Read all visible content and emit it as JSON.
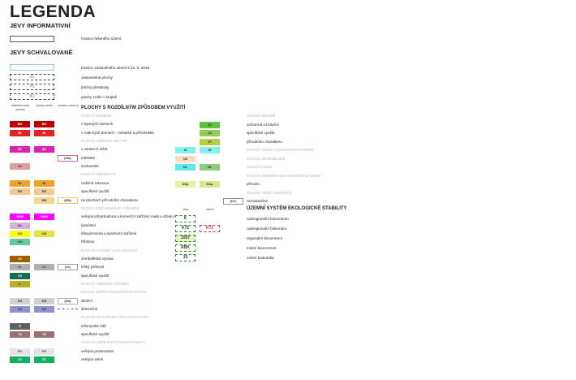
{
  "title": "LEGENDA",
  "info": {
    "heading": "JEVY INFORMATIVNÍ",
    "items": [
      {
        "label": "hranice řešeného území"
      }
    ]
  },
  "approved": {
    "heading": "JEVY SCHVALOVANÉ",
    "items": [
      {
        "code": "",
        "label": "hranice zastavěného území k 31. 5. 2016",
        "color": "#9dc3e6"
      },
      {
        "code": "Z1",
        "label": "zastavitelné plochy",
        "color": "#d040c0"
      },
      {
        "code": "P1",
        "label": "plochy přestavby",
        "color": "#4a90c0"
      },
      {
        "code": "K1",
        "label": "plochy změn v krajině",
        "color": "#30a030"
      }
    ]
  },
  "columns": {
    "stab": "stabilizované plochy",
    "zmena": "plochy změn",
    "rezerva": "územní rezervy"
  },
  "areas_heading": "PLOCHY S ROZDÍLNÝM ZPŮSOBEM VYUŽITÍ",
  "left_rows": [
    {
      "cat": "PLOCHY BYDLENÍ"
    },
    {
      "label": "v bytových domech",
      "stab": {
        "code": "BH",
        "color": "#c00000"
      },
      "zmena": {
        "code": "BH",
        "color": "#c00000"
      }
    },
    {
      "label": "v rodinných domech - městské a příměstské",
      "stab": {
        "code": "BI",
        "color": "#e82020"
      },
      "zmena": {
        "code": "BI",
        "color": "#e82020"
      }
    },
    {
      "cat": "PLOCHY SMÍŠENÉ OBYTNÉ"
    },
    {
      "label": "v centrech měst",
      "stab": {
        "code": "SC",
        "color": "#e020b0"
      },
      "zmena": {
        "code": "SC",
        "color": "#e020b0"
      }
    },
    {
      "label": "městské",
      "rezerva": {
        "code": "(SM)",
        "color": "#d060c0"
      }
    },
    {
      "label": "venkovské",
      "stab": {
        "code": "SV",
        "color": "#e0a0a0"
      }
    },
    {
      "cat": "PLOCHY REKREACE"
    },
    {
      "label": "rodinná rekreace",
      "stab": {
        "code": "RI",
        "color": "#f0a030"
      },
      "zmena": {
        "code": "RI",
        "color": "#f0a030"
      }
    },
    {
      "label": "specifické využití",
      "stab": {
        "code": "RX",
        "color": "#f5c890"
      },
      "zmena": {
        "code": "RX",
        "color": "#f5c890"
      }
    },
    {
      "label": "na plochách přírodního charakteru",
      "zmena": {
        "code": "RN",
        "color": "#f0d890"
      },
      "rezerva": {
        "code": "(RN)",
        "color": "#e8c860"
      }
    },
    {
      "cat": "PLOCHY OBČANSKÉHO VYBAVENÍ"
    },
    {
      "label": "veřejná infrastruktura a komerční zařízení malá a střední",
      "stab": {
        "code": "OVW",
        "color": "#ff00ff"
      },
      "zmena": {
        "code": "OVW",
        "color": "#ff00ff"
      }
    },
    {
      "label": "lázeňství",
      "stab": {
        "code": "OL",
        "color": "#d8b0e0"
      }
    },
    {
      "label": "tělovýchovná a sportovní zařízení",
      "stab": {
        "code": "OS",
        "color": "#ffff00"
      },
      "zmena": {
        "code": "OS",
        "color": "#e8e040"
      }
    },
    {
      "label": "hřbitovy",
      "stab": {
        "code": "OH",
        "color": "#60c8a0"
      }
    },
    {
      "cat": "PLOCHY VÝROBY A SKLADOVÁNÍ"
    },
    {
      "label": "zemědělská výroba",
      "stab": {
        "code": "VZ",
        "color": "#a06000"
      }
    },
    {
      "label": "lehký průmysl",
      "stab": {
        "code": "VL",
        "color": "#b0b0b0"
      },
      "zmena": {
        "code": "VL",
        "color": "#b0b0b0"
      },
      "rezerva": {
        "code": "(VL)",
        "color": "#a0a0a0"
      }
    },
    {
      "label": "specifické využití",
      "stab": {
        "code": "VX",
        "color": "#107050"
      }
    },
    {
      "cat": "PLOCHY SMÍŠENÉ VÝROBNÍ",
      "stab": {
        "code": "K",
        "color": "#b8b020"
      }
    },
    {
      "cat": "PLOCHY DOPRAVNÍ INFRASTRUKTURY"
    },
    {
      "label": "silniční",
      "stab": {
        "code": "DS",
        "color": "#d0d0d0"
      },
      "zmena": {
        "code": "DS",
        "color": "#d0d0d0"
      },
      "rezerva": {
        "code": "(DS)",
        "color": "#b0b0b0"
      }
    },
    {
      "label": "železniční",
      "stab": {
        "code": "DZ",
        "color": "#9090d0"
      },
      "zmena": {
        "code": "DZ",
        "color": "#9090d0"
      },
      "rezerva": {
        "code": "(DZ)",
        "color": "#606060",
        "line": true
      }
    },
    {
      "cat": "PLOCHY TECHNICKÉ INFRASTRUKTURY"
    },
    {
      "label": "inženýrské sítě",
      "stab": {
        "code": "TI",
        "color": "#606060"
      }
    },
    {
      "label": "specifické využití",
      "stab": {
        "code": "TX",
        "color": "#a07070"
      },
      "zmena": {
        "code": "TX",
        "color": "#a07070"
      }
    },
    {
      "cat": "PLOCHY VEŘEJNÝCH PROSTRANSTVÍ"
    },
    {
      "label": "veřejná prostranství",
      "stab": {
        "code": "PV",
        "color": "#e4e4e4"
      },
      "zmena": {
        "code": "PV",
        "color": "#e4e4e4"
      }
    },
    {
      "label": "veřejná zeleň",
      "stab": {
        "code": "ZV",
        "color": "#10b060"
      },
      "zmena": {
        "code": "ZV",
        "color": "#10b060"
      }
    }
  ],
  "right_rows": [
    {
      "cat": "PLOCHY ZELENĚ"
    },
    {
      "label": "ochranná a izolační",
      "zmena": {
        "code": "ZO",
        "color": "#60c040"
      }
    },
    {
      "label": "specifické využití",
      "zmena": {
        "code": "ZX",
        "color": "#90d050"
      }
    },
    {
      "label": "přírodního charakteru",
      "zmena": {
        "code": "ZP",
        "color": "#b8d040"
      }
    },
    {
      "cat": "PLOCHY VODNÍ A VODOHOSPODÁŘSKÉ",
      "stab": {
        "code": "W",
        "color": "#80f0f0"
      },
      "zmena": {
        "code": "W",
        "color": "#80f0f0"
      }
    },
    {
      "cat": "PLOCHY ZEMĚDĚLSKÉ",
      "stab": {
        "code": "NZ",
        "color": "#f8dcc0"
      }
    },
    {
      "cat": "PLOCHY LESNÍ",
      "stab": {
        "code": "NL",
        "color": "#60e8e8"
      },
      "zmena": {
        "code": "NL",
        "color": "#90c880"
      }
    },
    {
      "cat": "PLOCHY SMÍŠENÉ NEZASTAVĚNÉHO ÚZEMÍ"
    },
    {
      "label": "přírodní",
      "stab": {
        "code": "NSp",
        "color": "#e0f4a0"
      },
      "zmena": {
        "code": "NSp",
        "color": "#d8e890"
      }
    },
    {
      "cat": "PLOCHY TĚŽBY NEROSTŮ"
    },
    {
      "label": "nezastavěné",
      "rezerva": {
        "code": "(NT)",
        "color": "#909090"
      }
    }
  ],
  "uses": {
    "heading": "ÚZEMNÍ SYSTÉM EKOLOGICKÉ STABILITY",
    "stav": "stav",
    "navrh": "návrh",
    "items": [
      {
        "label": "nadregionální biocentrum",
        "stav": "K",
        "navrh": ""
      },
      {
        "label": "nadregionální biokoridor",
        "stav": "K72",
        "navrh": "K72"
      },
      {
        "label": "regionální biocentrum",
        "stav": "1507",
        "navrh": ""
      },
      {
        "label": "místní biocentrum",
        "stav": "RBK",
        "navrh": ""
      },
      {
        "label": "místní biokoridor",
        "stav": "15",
        "navrh": ""
      }
    ],
    "stav_color": "#2a8a2a",
    "navrh_color": "#d03060"
  }
}
